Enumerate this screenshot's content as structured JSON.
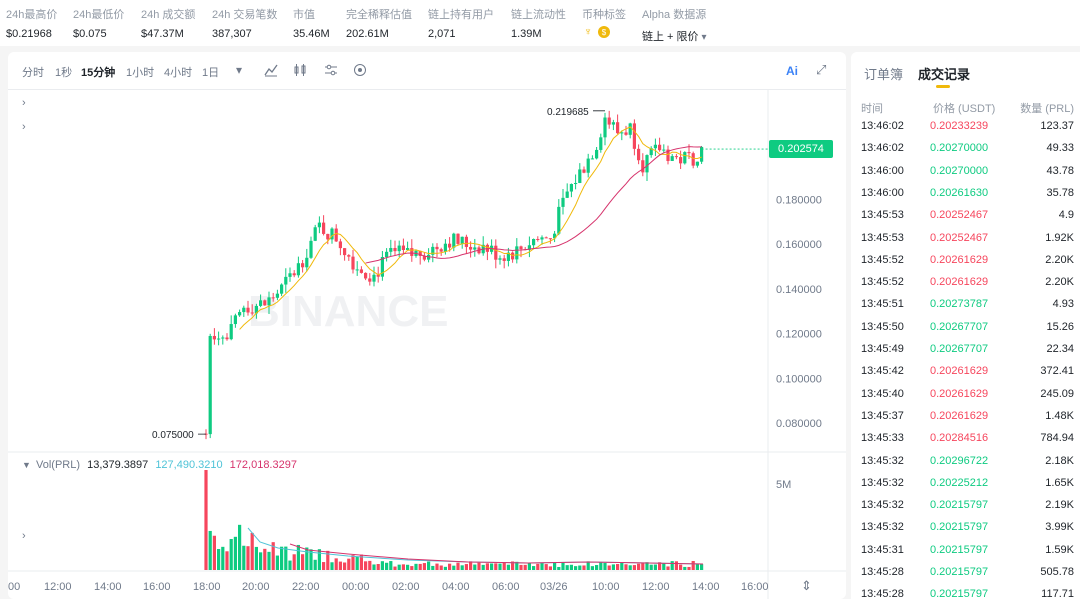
{
  "stats": [
    {
      "label": "24h最高价",
      "value": "$0.21968"
    },
    {
      "label": "24h最低价",
      "value": "$0.075"
    },
    {
      "label": "24h 成交额",
      "value": "$47.37M"
    },
    {
      "label": "24h 交易笔数",
      "value": "387,307"
    },
    {
      "label": "市值",
      "value": "35.46M"
    },
    {
      "label": "完全稀释估值",
      "value": "202.61M"
    },
    {
      "label": "链上持有用户",
      "value": "2,071"
    },
    {
      "label": "链上流动性",
      "value": "1.39M"
    },
    {
      "label": "币种标签",
      "value": ""
    },
    {
      "label": "Alpha 数据源",
      "value": "链上 + 限价"
    }
  ],
  "toolbar": {
    "intervals": [
      "分时",
      "1秒",
      "15分钟",
      "1小时",
      "4小时",
      "1日"
    ],
    "active_interval": "15分钟",
    "ai_label": "Ai"
  },
  "chart": {
    "current_price": "0.202574",
    "accent_up": "#0ecb81",
    "accent_down": "#f6465d",
    "watermark": "BINANCE",
    "volume_legend": {
      "label": "Vol(PRL)",
      "v1": "13,379.3897",
      "v2": "127,490.3210",
      "v3": "172,018.3297"
    },
    "volume_axis_label": "5M"
  },
  "chart_data": {
    "type": "candlestick",
    "y_ticks": [
      "0.180000",
      "0.160000",
      "0.140000",
      "0.120000",
      "0.100000",
      "0.080000"
    ],
    "y_tick_values": [
      0.18,
      0.16,
      0.14,
      0.12,
      0.1,
      0.08
    ],
    "ylim": [
      0.067,
      0.229
    ],
    "x_ticks": [
      "00",
      "12:00",
      "14:00",
      "16:00",
      "18:00",
      "20:00",
      "22:00",
      "00:00",
      "02:00",
      "04:00",
      "06:00",
      "03/26",
      "10:00",
      "12:00",
      "14:00",
      "16:00"
    ],
    "high_label": "0.219685",
    "low_label": "0.075000",
    "high": 0.219685,
    "low": 0.075
  },
  "trades": {
    "tabs": [
      "订单簿",
      "成交记录"
    ],
    "active_tab": "成交记录",
    "headers": {
      "time": "时间",
      "price": "价格 (USDT)",
      "amount": "数量 (PRL)"
    },
    "rows": [
      {
        "time": "13:46:02",
        "price": "0.20233239",
        "amount": "123.37",
        "side": "down"
      },
      {
        "time": "13:46:02",
        "price": "0.20270000",
        "amount": "49.33",
        "side": "up"
      },
      {
        "time": "13:46:00",
        "price": "0.20270000",
        "amount": "43.78",
        "side": "up"
      },
      {
        "time": "13:46:00",
        "price": "0.20261630",
        "amount": "35.78",
        "side": "up"
      },
      {
        "time": "13:45:53",
        "price": "0.20252467",
        "amount": "4.9",
        "side": "down"
      },
      {
        "time": "13:45:53",
        "price": "0.20252467",
        "amount": "1.92K",
        "side": "down"
      },
      {
        "time": "13:45:52",
        "price": "0.20261629",
        "amount": "2.20K",
        "side": "down"
      },
      {
        "time": "13:45:52",
        "price": "0.20261629",
        "amount": "2.20K",
        "side": "down"
      },
      {
        "time": "13:45:51",
        "price": "0.20273787",
        "amount": "4.93",
        "side": "up"
      },
      {
        "time": "13:45:50",
        "price": "0.20267707",
        "amount": "15.26",
        "side": "up"
      },
      {
        "time": "13:45:49",
        "price": "0.20267707",
        "amount": "22.34",
        "side": "up"
      },
      {
        "time": "13:45:42",
        "price": "0.20261629",
        "amount": "372.41",
        "side": "down"
      },
      {
        "time": "13:45:40",
        "price": "0.20261629",
        "amount": "245.09",
        "side": "down"
      },
      {
        "time": "13:45:37",
        "price": "0.20261629",
        "amount": "1.48K",
        "side": "down"
      },
      {
        "time": "13:45:33",
        "price": "0.20284516",
        "amount": "784.94",
        "side": "down"
      },
      {
        "time": "13:45:32",
        "price": "0.20296722",
        "amount": "2.18K",
        "side": "up"
      },
      {
        "time": "13:45:32",
        "price": "0.20225212",
        "amount": "1.65K",
        "side": "up"
      },
      {
        "time": "13:45:32",
        "price": "0.20215797",
        "amount": "2.19K",
        "side": "up"
      },
      {
        "time": "13:45:32",
        "price": "0.20215797",
        "amount": "3.99K",
        "side": "up"
      },
      {
        "time": "13:45:31",
        "price": "0.20215797",
        "amount": "1.59K",
        "side": "up"
      },
      {
        "time": "13:45:28",
        "price": "0.20215797",
        "amount": "505.78",
        "side": "up"
      },
      {
        "time": "13:45:28",
        "price": "0.20215797",
        "amount": "117.71",
        "side": "up"
      }
    ]
  }
}
